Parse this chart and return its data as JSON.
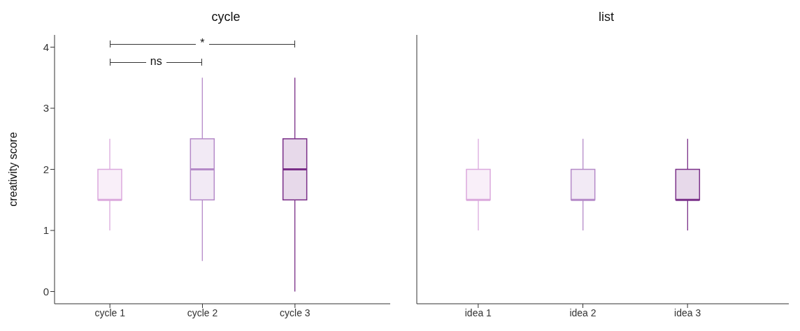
{
  "chart_data": [
    {
      "type": "box",
      "title": "cycle",
      "ylabel": "creativity score",
      "categories": [
        "cycle 1",
        "cycle 2",
        "cycle 3"
      ],
      "boxes": [
        {
          "low": 1,
          "q1": 1.5,
          "median": 1.5,
          "q3": 2,
          "high": 2.5
        },
        {
          "low": 0.5,
          "q1": 1.5,
          "median": 2,
          "q3": 2.5,
          "high": 3.5
        },
        {
          "low": 0,
          "q1": 1.5,
          "median": 2,
          "q3": 2.5,
          "high": 3.5
        }
      ],
      "colors": [
        "#dba9dd",
        "#b58ac8",
        "#7a2f88"
      ],
      "ylim": [
        -0.2,
        4.2
      ],
      "yticks": [
        0,
        1,
        2,
        3,
        4
      ],
      "annotations": [
        "ns",
        "*"
      ]
    },
    {
      "type": "box",
      "title": "list",
      "categories": [
        "idea 1",
        "idea 2",
        "idea 3"
      ],
      "boxes": [
        {
          "low": 1,
          "q1": 1.5,
          "median": 1.5,
          "q3": 2,
          "high": 2.5
        },
        {
          "low": 1,
          "q1": 1.5,
          "median": 1.5,
          "q3": 2,
          "high": 2.5
        },
        {
          "low": 1,
          "q1": 1.5,
          "median": 1.5,
          "q3": 2,
          "high": 2.5
        }
      ],
      "colors": [
        "#dba9dd",
        "#b58ac8",
        "#7a2f88"
      ],
      "ylim": [
        -0.2,
        4.2
      ],
      "yticks": [
        0,
        1,
        2,
        3,
        4
      ],
      "tick_labels": "x"
    }
  ]
}
